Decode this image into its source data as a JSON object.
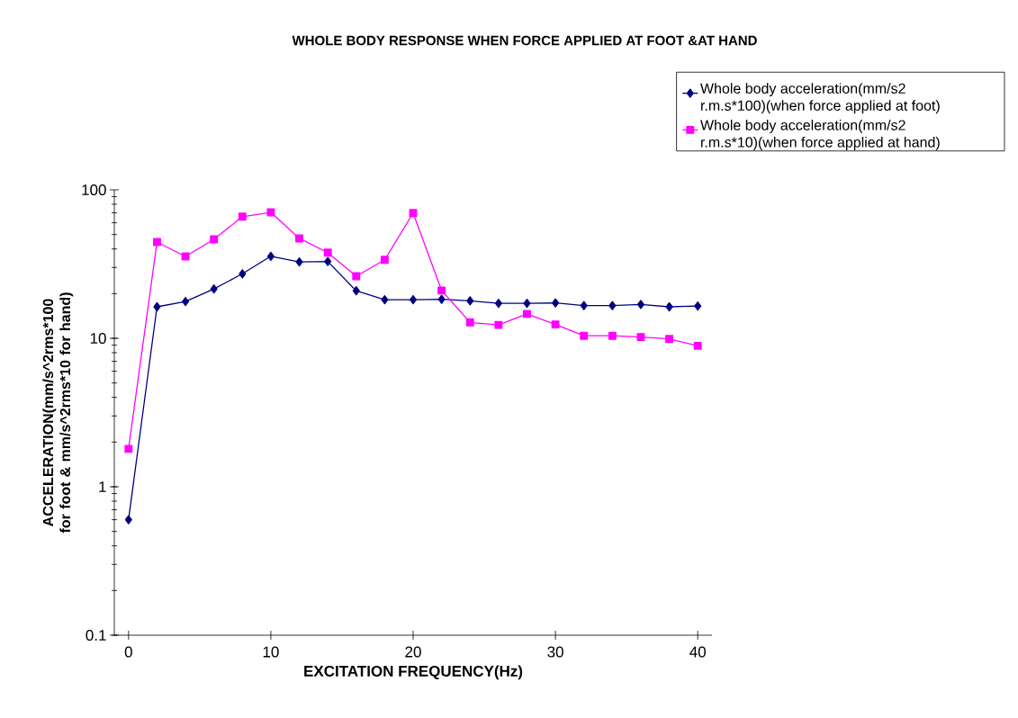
{
  "chart_data": {
    "type": "line",
    "title": "WHOLE BODY RESPONSE WHEN FORCE APPLIED AT FOOT &AT HAND",
    "xlabel": "EXCITATION FREQUENCY(Hz)",
    "ylabel": "ACCELERATION(mm/s^2rms*100 for foot & mm/s^2rms*10 for hand)",
    "x": [
      0,
      2,
      4,
      6,
      8,
      10,
      12,
      14,
      16,
      18,
      20,
      22,
      24,
      26,
      28,
      30,
      32,
      34,
      36,
      38,
      40
    ],
    "series": [
      {
        "name": "Whole body acceleration(mm/s2 r.m.s*100)(when force applied at foot)",
        "color": "#000080",
        "marker": "diamond",
        "values": [
          0.6,
          16.3,
          17.7,
          21.5,
          27.2,
          35.7,
          32.7,
          32.9,
          20.9,
          18.2,
          18.2,
          18.3,
          17.9,
          17.2,
          17.2,
          17.3,
          16.6,
          16.6,
          16.9,
          16.3,
          16.5
        ]
      },
      {
        "name": "Whole body acceleration(mm/s2 r.m.s*10)(when force applied at hand)",
        "color": "#ff00ff",
        "marker": "square",
        "values": [
          1.8,
          44.5,
          35.6,
          46.4,
          66,
          70.5,
          47.1,
          37.8,
          26.2,
          33.8,
          69.8,
          21.0,
          12.8,
          12.3,
          14.6,
          12.4,
          10.4,
          10.4,
          10.2,
          9.9,
          8.9
        ]
      }
    ],
    "log": "y",
    "xlim": [
      -1,
      41
    ],
    "xticks": [
      0,
      10,
      20,
      30,
      40
    ],
    "ylim": [
      0.1,
      100
    ],
    "yticks": [
      0.1,
      1,
      10,
      100
    ],
    "legend": "top right",
    "grid": false,
    "line_style": "solid"
  }
}
